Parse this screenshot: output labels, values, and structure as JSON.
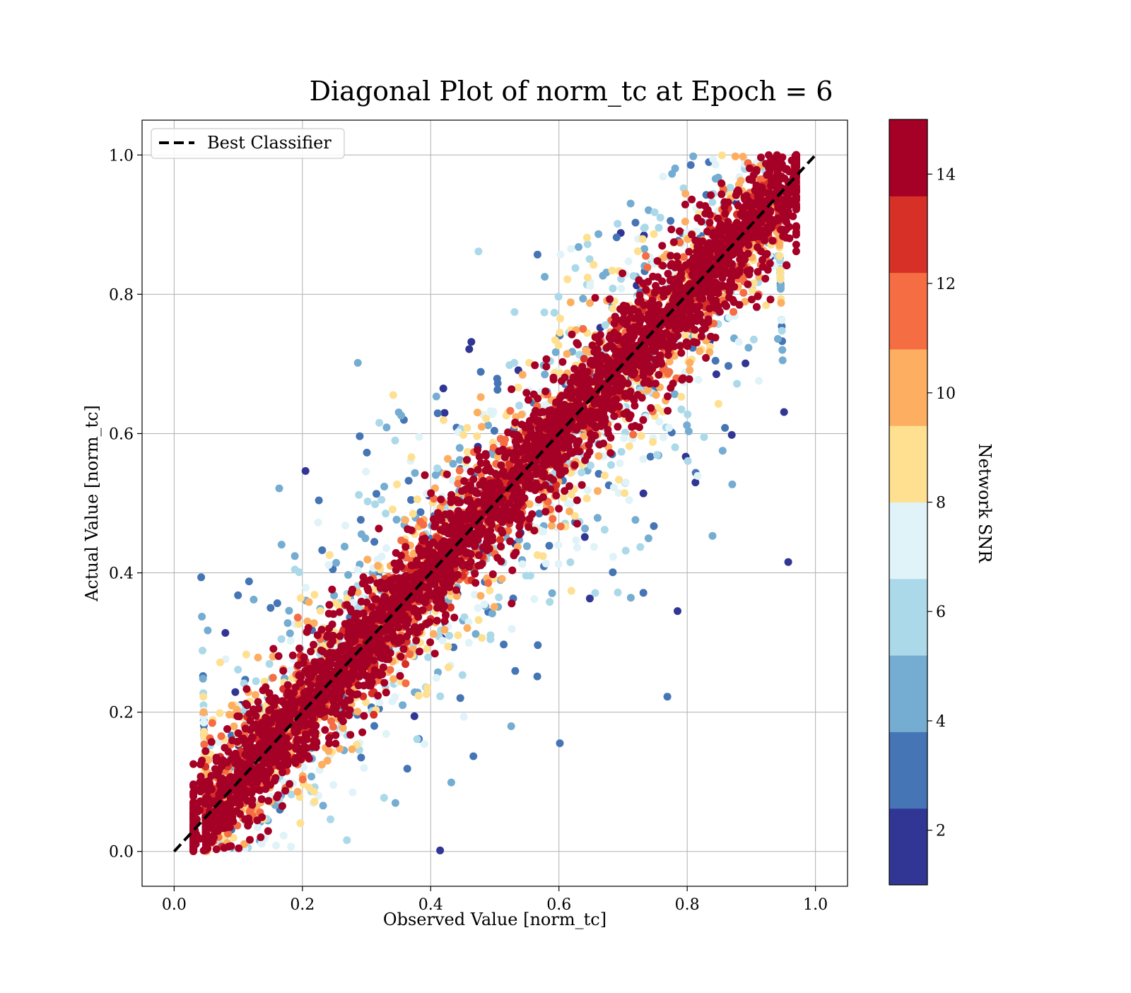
{
  "chart_data": {
    "type": "scatter",
    "title": "Diagonal Plot of norm_tc at Epoch = 6",
    "xlabel": "Observed Value [norm_tc]",
    "ylabel": "Actual Value [norm_tc]",
    "xlim": [
      -0.05,
      1.05
    ],
    "ylim": [
      -0.05,
      1.05
    ],
    "xticks": [
      "0.0",
      "0.2",
      "0.4",
      "0.6",
      "0.8",
      "1.0"
    ],
    "yticks": [
      "0.0",
      "0.2",
      "0.4",
      "0.6",
      "0.8",
      "1.0"
    ],
    "grid": true,
    "legend": {
      "location": "upper-left",
      "entries": [
        {
          "label": "Best Classifier",
          "style": "dashed",
          "color": "#000000"
        }
      ]
    },
    "reference_line": {
      "x": [
        0.0,
        1.0
      ],
      "y": [
        0.0,
        1.0
      ]
    },
    "colorbar": {
      "label": "Network SNR",
      "range": [
        1,
        15
      ],
      "bounds": [
        1,
        2.4,
        3.8,
        5.2,
        6.6,
        8.0,
        9.4,
        10.8,
        12.2,
        13.6,
        15
      ],
      "colors": [
        "#313695",
        "#4575b4",
        "#74add1",
        "#abd9e9",
        "#e0f3f8",
        "#fee090",
        "#fdae61",
        "#f46d43",
        "#d73027",
        "#a50026"
      ],
      "ticks": [
        "2",
        "4",
        "6",
        "8",
        "10",
        "12",
        "14"
      ],
      "tick_values": [
        2,
        4,
        6,
        8,
        10,
        12,
        14
      ]
    },
    "points_summary": {
      "distribution": "dense diagonal band of high-SNR points (SNR > 14) along x = y from (0.03, 0.0) to (0.97, 1.0), widening with lower-SNR points scattered farther from the diagonal",
      "x_range": [
        0.03,
        0.97
      ],
      "y_range": [
        0.0,
        1.0
      ],
      "snr_range": [
        1,
        15
      ]
    }
  }
}
